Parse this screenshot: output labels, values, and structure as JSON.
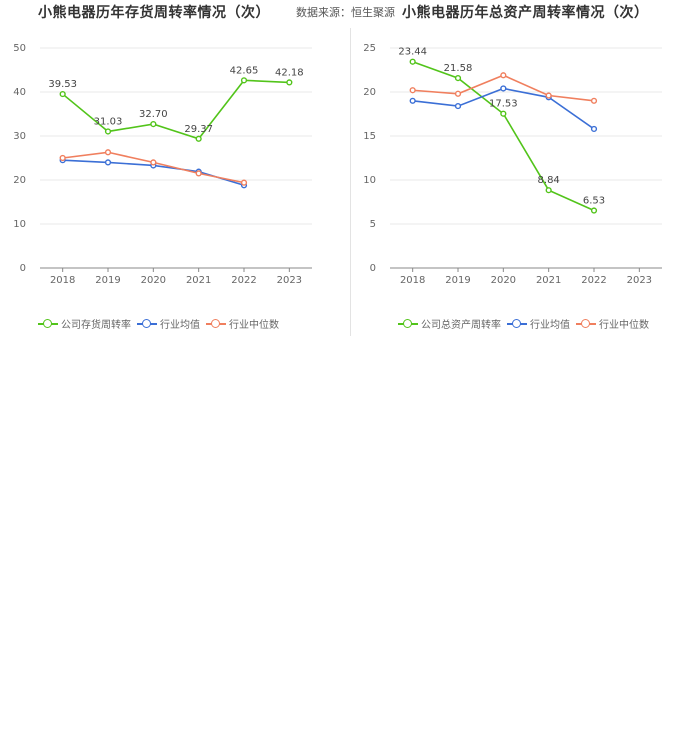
{
  "source_label": "数据来源：恒生聚源",
  "charts": [
    {
      "title": "小熊电器历年存货周转率情况（次）",
      "legend": [
        "公司存货周转率",
        "行业均值",
        "行业中位数"
      ]
    },
    {
      "title": "小熊电器历年总资产周转率情况（次）",
      "legend": [
        "公司总资产周转率",
        "行业均值",
        "行业中位数"
      ]
    }
  ],
  "colors": {
    "company": "#52c41a",
    "mean": "#3b6fd6",
    "median": "#f07f5e",
    "grid": "#e8e8e8",
    "axis": "#888888"
  },
  "chart_data": [
    {
      "type": "line",
      "title": "小熊电器历年存货周转率情况（次）",
      "categories": [
        "2018",
        "2019",
        "2020",
        "2021",
        "2022",
        "2023"
      ],
      "ylim": [
        0,
        50
      ],
      "yticks": [
        0,
        10,
        20,
        30,
        40,
        50
      ],
      "series": [
        {
          "name": "公司存货周转率",
          "values": [
            39.53,
            31.03,
            32.7,
            29.37,
            42.65,
            42.18
          ],
          "labels": [
            "39.53",
            "31.03",
            "32.70",
            "29.37",
            "42.65",
            "42.18"
          ]
        },
        {
          "name": "行业均值",
          "values": [
            24.5,
            24.0,
            23.3,
            21.9,
            18.8,
            null
          ]
        },
        {
          "name": "行业中位数",
          "values": [
            25.0,
            26.3,
            24.0,
            21.5,
            19.4,
            null
          ]
        }
      ]
    },
    {
      "type": "line",
      "title": "小熊电器历年总资产周转率情况（次）",
      "categories": [
        "2018",
        "2019",
        "2020",
        "2021",
        "2022",
        "2023"
      ],
      "ylim": [
        0,
        25
      ],
      "yticks": [
        0,
        5,
        10,
        15,
        20,
        25
      ],
      "series": [
        {
          "name": "公司总资产周转率",
          "values": [
            23.44,
            21.58,
            17.53,
            8.84,
            6.53,
            null
          ],
          "labels": [
            "23.44",
            "21.58",
            "17.53",
            "8.84",
            "6.53",
            ""
          ]
        },
        {
          "name": "行业均值",
          "values": [
            19.0,
            18.4,
            20.4,
            19.4,
            15.8,
            null
          ]
        },
        {
          "name": "行业中位数",
          "values": [
            20.2,
            19.8,
            21.9,
            19.6,
            19.0,
            null
          ]
        }
      ]
    }
  ]
}
